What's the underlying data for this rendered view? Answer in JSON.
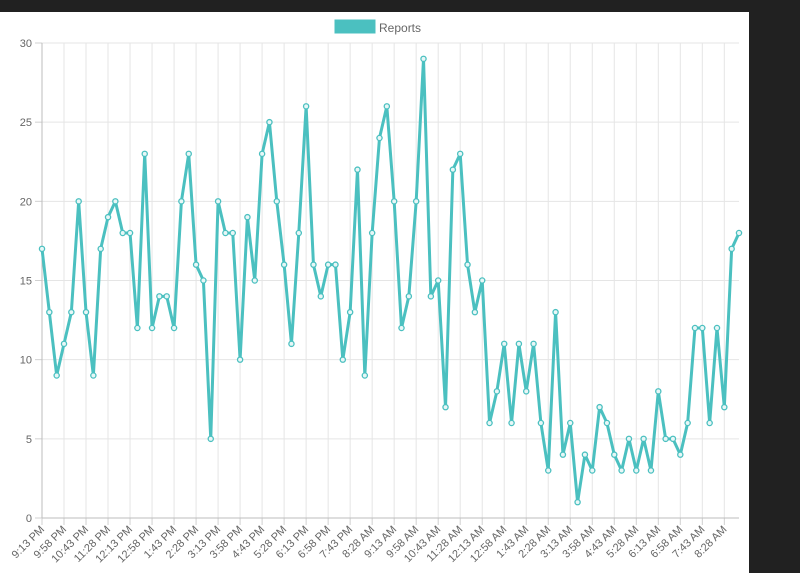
{
  "chart_data": {
    "type": "line",
    "title": "",
    "xlabel": "",
    "ylabel": "",
    "legend": {
      "position": "top-center",
      "entries": [
        "Reports"
      ]
    },
    "grid": true,
    "ylim": [
      0,
      30
    ],
    "y_ticks": [
      "0",
      "5",
      "10",
      "15",
      "20",
      "25",
      "30"
    ],
    "x_tick_labels": [
      "9:13 PM",
      "9:58 PM",
      "10:43 PM",
      "11:28 PM",
      "12:13 PM",
      "12:58 PM",
      "1:43 PM",
      "2:28 PM",
      "3:13 PM",
      "3:58 PM",
      "4:43 PM",
      "5:28 PM",
      "6:13 PM",
      "6:58 PM",
      "7:43 PM",
      "8:28 AM",
      "9:13 AM",
      "9:58 AM",
      "10:43 AM",
      "11:28 AM",
      "12:13 AM",
      "12:58 AM",
      "1:43 AM",
      "2:28 AM",
      "3:13 AM",
      "3:58 AM",
      "4:43 AM",
      "5:28 AM",
      "6:13 AM",
      "6:58 AM",
      "7:43 AM",
      "8:28 AM"
    ],
    "series": [
      {
        "name": "Reports",
        "color": "#4bc0c0",
        "values": [
          17,
          13,
          9,
          11,
          13,
          20,
          13,
          9,
          17,
          19,
          20,
          18,
          18,
          12,
          23,
          12,
          14,
          14,
          12,
          20,
          23,
          16,
          15,
          5,
          20,
          18,
          18,
          10,
          19,
          15,
          23,
          25,
          20,
          16,
          11,
          18,
          26,
          16,
          14,
          16,
          16,
          10,
          13,
          22,
          9,
          18,
          24,
          26,
          20,
          12,
          14,
          20,
          29,
          14,
          15,
          7,
          22,
          23,
          16,
          13,
          15,
          6,
          8,
          11,
          6,
          11,
          8,
          11,
          6,
          3,
          13,
          4,
          6,
          1,
          4,
          3,
          7,
          6,
          4,
          3,
          5,
          3,
          5,
          3,
          8,
          5,
          5,
          4,
          6,
          12,
          12,
          6,
          12,
          7,
          17,
          18
        ]
      }
    ]
  }
}
